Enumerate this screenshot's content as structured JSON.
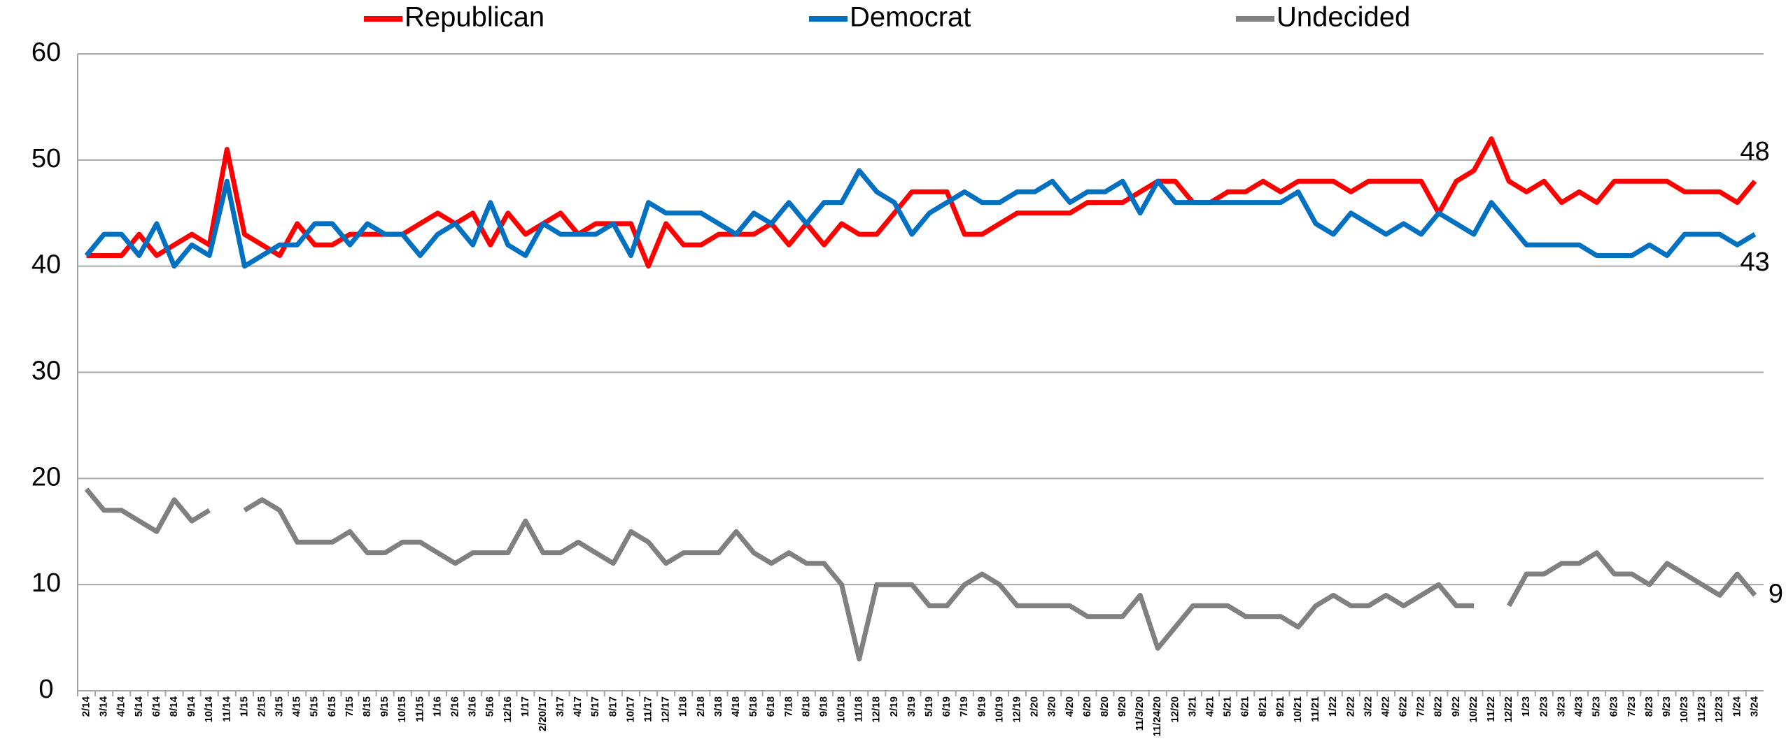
{
  "chart_data": {
    "type": "line",
    "categories": [
      "2/14",
      "3/14",
      "4/14",
      "5/14",
      "6/14",
      "8/14",
      "9/14",
      "10/14",
      "11/14",
      "1/15",
      "2/15",
      "3/15",
      "4/15",
      "5/15",
      "6/15",
      "7/15",
      "8/15",
      "9/15",
      "10/15",
      "11/15",
      "1/16",
      "2/16",
      "3/16",
      "5/16",
      "12/16",
      "1/17",
      "2/20/17",
      "3/17",
      "4/17",
      "5/17",
      "8/17",
      "10/17",
      "11/17",
      "12/17",
      "1/18",
      "2/18",
      "3/18",
      "4/18",
      "5/18",
      "6/18",
      "7/18",
      "8/18",
      "9/18",
      "10/18",
      "11/18",
      "12/18",
      "2/19",
      "3/19",
      "5/19",
      "6/19",
      "7/19",
      "9/19",
      "10/19",
      "12/19",
      "2/20",
      "3/20",
      "4/20",
      "6/20",
      "8/20",
      "9/20",
      "11/3/20",
      "11/24/20",
      "12/20",
      "3/21",
      "4/21",
      "5/21",
      "6/21",
      "8/21",
      "9/21",
      "10/21",
      "11/21",
      "1/22",
      "2/22",
      "3/22",
      "4/22",
      "6/22",
      "7/22",
      "8/22",
      "9/22",
      "10/22",
      "11/22",
      "12/22",
      "1/23",
      "2/23",
      "3/23",
      "4/23",
      "5/23",
      "6/23",
      "7/23",
      "8/23",
      "9/23",
      "10/23",
      "11/23",
      "12/23",
      "1/24",
      "3/24"
    ],
    "series": [
      {
        "name": "Republican",
        "color": "#ff0000",
        "values": [
          41,
          41,
          41,
          43,
          41,
          42,
          43,
          42,
          51,
          43,
          42,
          41,
          44,
          42,
          42,
          43,
          43,
          43,
          43,
          44,
          45,
          44,
          45,
          42,
          45,
          43,
          44,
          45,
          43,
          44,
          44,
          44,
          40,
          44,
          42,
          42,
          43,
          43,
          43,
          44,
          42,
          44,
          42,
          44,
          43,
          43,
          45,
          47,
          47,
          47,
          43,
          43,
          44,
          45,
          45,
          45,
          45,
          46,
          46,
          46,
          47,
          48,
          48,
          46,
          46,
          47,
          47,
          48,
          47,
          48,
          48,
          48,
          47,
          48,
          48,
          48,
          48,
          45,
          48,
          49,
          52,
          48,
          47,
          48,
          46,
          47,
          46,
          48,
          48,
          48,
          48,
          47,
          47,
          47,
          46,
          48
        ]
      },
      {
        "name": "Democrat",
        "color": "#0070c0",
        "values": [
          41,
          43,
          43,
          41,
          44,
          40,
          42,
          41,
          48,
          40,
          41,
          42,
          42,
          44,
          44,
          42,
          44,
          43,
          43,
          41,
          43,
          44,
          42,
          46,
          42,
          41,
          44,
          43,
          43,
          43,
          44,
          41,
          46,
          45,
          45,
          45,
          44,
          43,
          45,
          44,
          46,
          44,
          46,
          46,
          49,
          47,
          46,
          43,
          45,
          46,
          47,
          46,
          46,
          47,
          47,
          48,
          46,
          47,
          47,
          48,
          45,
          48,
          46,
          46,
          46,
          46,
          46,
          46,
          46,
          47,
          44,
          43,
          45,
          44,
          43,
          44,
          43,
          45,
          44,
          43,
          46,
          44,
          42,
          42,
          42,
          42,
          41,
          41,
          41,
          42,
          41,
          43,
          43,
          43,
          42,
          43
        ]
      },
      {
        "name": "Undecided",
        "color": "#808080",
        "values": [
          19,
          17,
          17,
          16,
          15,
          18,
          16,
          17,
          null,
          17,
          18,
          17,
          14,
          14,
          14,
          15,
          13,
          13,
          14,
          14,
          13,
          12,
          13,
          13,
          13,
          16,
          13,
          13,
          14,
          13,
          12,
          15,
          14,
          12,
          13,
          13,
          13,
          15,
          13,
          12,
          13,
          12,
          12,
          10,
          3,
          10,
          10,
          10,
          8,
          8,
          10,
          11,
          10,
          8,
          8,
          8,
          8,
          7,
          7,
          7,
          9,
          4,
          6,
          8,
          8,
          8,
          7,
          7,
          7,
          6,
          8,
          9,
          8,
          8,
          9,
          8,
          9,
          10,
          8,
          8,
          null,
          8,
          11,
          11,
          12,
          12,
          13,
          11,
          11,
          10,
          12,
          11,
          10,
          9,
          11,
          9
        ]
      }
    ],
    "ylim": [
      0,
      60
    ],
    "yticks": [
      0,
      10,
      20,
      30,
      40,
      50,
      60
    ],
    "grid": true,
    "legend": "top"
  }
}
